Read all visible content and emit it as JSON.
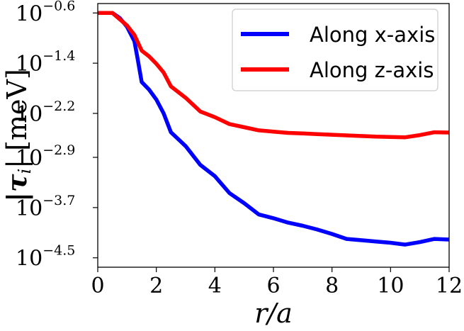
{
  "chart_data": {
    "type": "line",
    "xlabel": "r/a",
    "ylabel_prefix": "|τ",
    "ylabel_sub": "i",
    "ylabel_suffix": "| [meV]",
    "xlim": [
      0,
      12
    ],
    "y_scale": "log10",
    "ylim_exponent": [
      -4.65,
      -0.45
    ],
    "x_ticks": [
      0,
      2,
      4,
      6,
      8,
      10,
      12
    ],
    "y_ticks": [
      {
        "base": "10",
        "exp": "−0.6",
        "value": -0.6
      },
      {
        "base": "10",
        "exp": "−1.4",
        "value": -1.4
      },
      {
        "base": "10",
        "exp": "−2.2",
        "value": -2.2
      },
      {
        "base": "10",
        "exp": "−2.9",
        "value": -2.9
      },
      {
        "base": "10",
        "exp": "−3.7",
        "value": -3.7
      },
      {
        "base": "10",
        "exp": "−4.5",
        "value": -4.5
      }
    ],
    "grid": false,
    "legend_position": "top-right",
    "series": [
      {
        "name": "Along x-axis",
        "color": "#0000ff",
        "x": [
          0,
          0.5,
          0.75,
          1.0,
          1.25,
          1.35,
          1.5,
          1.75,
          2.0,
          2.25,
          2.5,
          3.0,
          3.5,
          4.0,
          4.5,
          5.0,
          5.5,
          6.0,
          6.5,
          7.0,
          7.5,
          8.0,
          8.5,
          9.0,
          9.5,
          10.0,
          10.5,
          11.0,
          11.5,
          12.0
        ],
        "y_exponent": [
          -0.6,
          -0.6,
          -0.68,
          -0.82,
          -1.05,
          -1.3,
          -1.7,
          -1.82,
          -1.98,
          -2.2,
          -2.5,
          -2.72,
          -3.02,
          -3.2,
          -3.47,
          -3.63,
          -3.81,
          -3.87,
          -3.94,
          -3.99,
          -4.05,
          -4.12,
          -4.2,
          -4.22,
          -4.24,
          -4.26,
          -4.29,
          -4.25,
          -4.2,
          -4.21
        ]
      },
      {
        "name": "Along z-axis",
        "color": "#ff0000",
        "x": [
          0,
          0.5,
          0.75,
          1.0,
          1.25,
          1.5,
          1.75,
          2.0,
          2.25,
          2.5,
          3.0,
          3.5,
          4.0,
          4.5,
          5.0,
          5.5,
          6.0,
          6.5,
          7.0,
          7.5,
          8.0,
          8.5,
          9.0,
          9.5,
          10.0,
          10.5,
          11.0,
          11.5,
          12.0
        ],
        "y_exponent": [
          -0.6,
          -0.6,
          -0.7,
          -0.8,
          -0.95,
          -1.2,
          -1.29,
          -1.41,
          -1.55,
          -1.77,
          -1.95,
          -2.17,
          -2.26,
          -2.37,
          -2.42,
          -2.47,
          -2.49,
          -2.51,
          -2.52,
          -2.53,
          -2.54,
          -2.55,
          -2.56,
          -2.57,
          -2.575,
          -2.58,
          -2.545,
          -2.5,
          -2.505
        ]
      }
    ]
  }
}
